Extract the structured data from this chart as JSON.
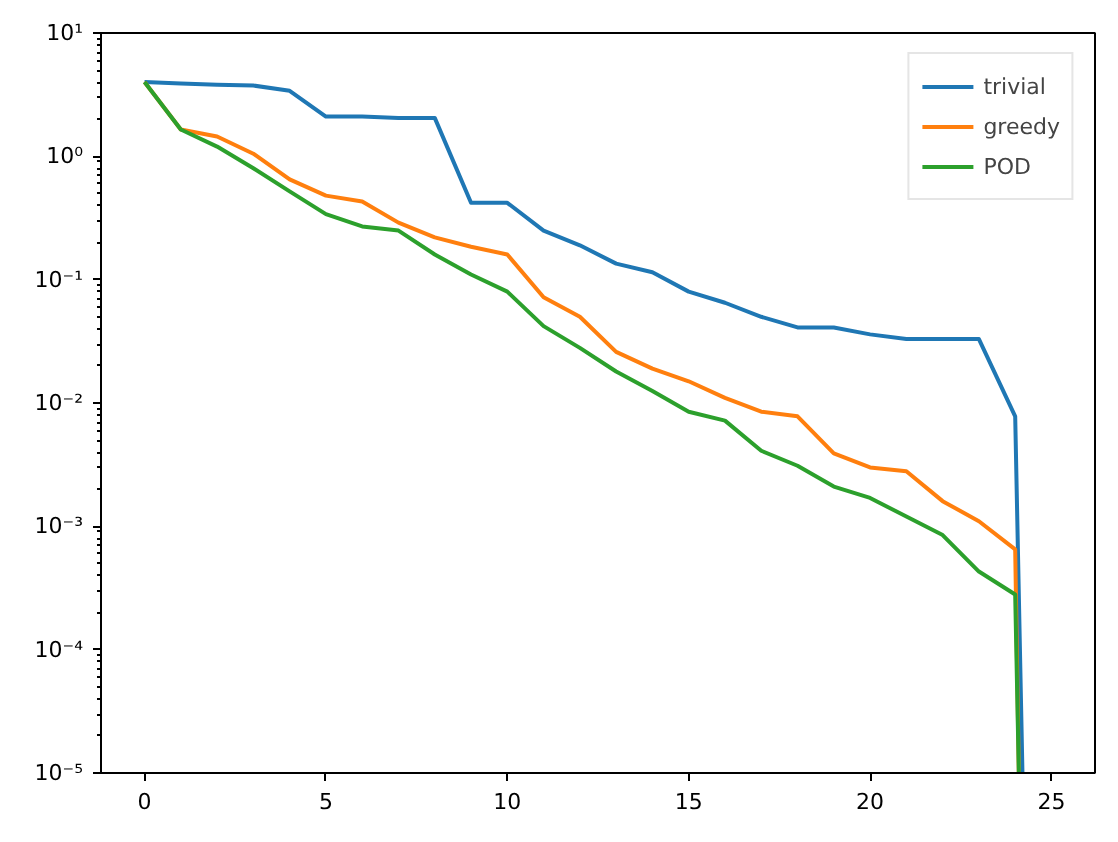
{
  "chart_data": {
    "type": "line",
    "log": "y",
    "grid": false,
    "legend": "top right",
    "xlim": [
      -1.2,
      26.2
    ],
    "ylim": [
      1e-05,
      10
    ],
    "xticks": [
      0,
      5,
      10,
      15,
      20,
      25
    ],
    "yticks": [
      {
        "value": 1e-05,
        "label": "10⁻⁵"
      },
      {
        "value": 0.0001,
        "label": "10⁻⁴"
      },
      {
        "value": 0.001,
        "label": "10⁻³"
      },
      {
        "value": 0.01,
        "label": "10⁻²"
      },
      {
        "value": 0.1,
        "label": "10⁻¹"
      },
      {
        "value": 1,
        "label": "10⁰"
      },
      {
        "value": 10,
        "label": "10¹"
      }
    ],
    "series": [
      {
        "name": "trivial",
        "color": "#1f77b4",
        "x": [
          0,
          1,
          2,
          3,
          4,
          5,
          6,
          7,
          8,
          9,
          10,
          11,
          12,
          13,
          14,
          15,
          16,
          17,
          18,
          19,
          20,
          21,
          22,
          23,
          24,
          24.2
        ],
        "values": [
          4.0,
          3.9,
          3.8,
          3.75,
          3.4,
          2.1,
          2.1,
          2.05,
          2.05,
          0.42,
          0.42,
          0.25,
          0.19,
          0.135,
          0.115,
          0.08,
          0.065,
          0.05,
          0.041,
          0.041,
          0.036,
          0.033,
          0.033,
          0.033,
          0.0078,
          1e-05
        ]
      },
      {
        "name": "greedy",
        "color": "#ff7f0e",
        "x": [
          0,
          1,
          2,
          3,
          4,
          5,
          6,
          7,
          8,
          9,
          10,
          11,
          12,
          13,
          14,
          15,
          16,
          17,
          18,
          19,
          20,
          21,
          22,
          23,
          24,
          24.1
        ],
        "values": [
          4.0,
          1.65,
          1.45,
          1.05,
          0.65,
          0.48,
          0.43,
          0.29,
          0.22,
          0.185,
          0.16,
          0.072,
          0.05,
          0.026,
          0.019,
          0.015,
          0.011,
          0.0085,
          0.0078,
          0.0039,
          0.003,
          0.0028,
          0.0016,
          0.0011,
          0.00065,
          1e-05
        ]
      },
      {
        "name": "POD",
        "color": "#2ca02c",
        "x": [
          0,
          1,
          2,
          3,
          4,
          5,
          6,
          7,
          8,
          9,
          10,
          11,
          12,
          13,
          14,
          15,
          16,
          17,
          18,
          19,
          20,
          21,
          22,
          23,
          24,
          24.1
        ],
        "values": [
          4.0,
          1.65,
          1.2,
          0.8,
          0.52,
          0.34,
          0.27,
          0.25,
          0.16,
          0.11,
          0.08,
          0.042,
          0.028,
          0.018,
          0.0125,
          0.0085,
          0.0072,
          0.0041,
          0.0031,
          0.0021,
          0.0017,
          0.0012,
          0.00085,
          0.00043,
          0.00028,
          1e-05
        ]
      }
    ]
  }
}
